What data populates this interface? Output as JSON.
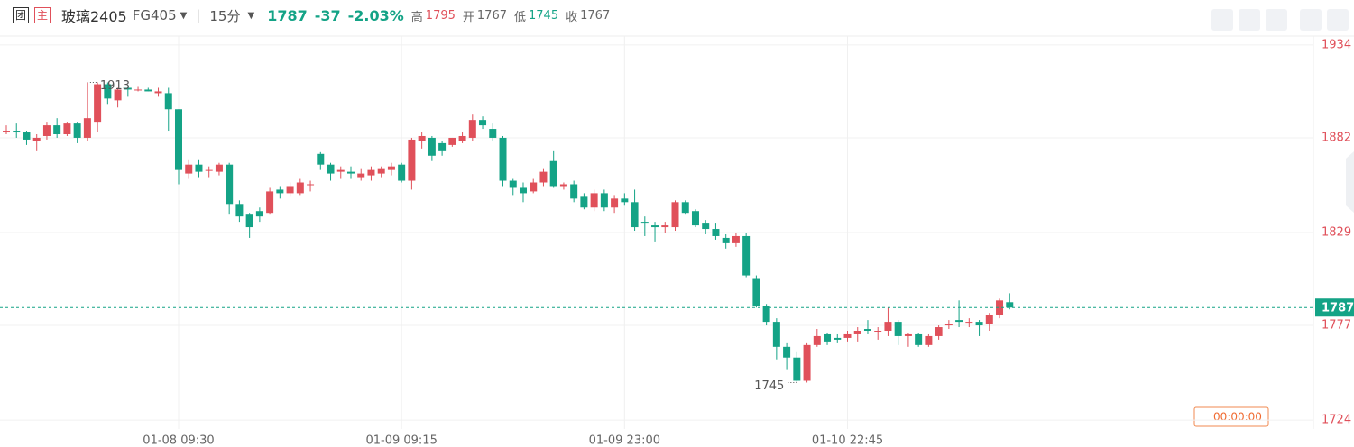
{
  "header": {
    "badges": [
      "团",
      "主"
    ],
    "name": "玻璃2405",
    "code": "FG405",
    "period": "15分",
    "price": 1787,
    "change": -37,
    "change_pct": "-2.03%",
    "stats": [
      {
        "label": "高",
        "value": 1795
      },
      {
        "label": "开",
        "value": 1767
      },
      {
        "label": "低",
        "value": 1745
      },
      {
        "label": "收",
        "value": 1767
      }
    ],
    "timer": "00:00:00"
  },
  "chart_data": {
    "type": "candlestick",
    "up_color": "#e0505a",
    "down_color": "#14a386",
    "ylim": [
      1719,
      1939
    ],
    "yticks": [
      1934,
      1882,
      1829,
      1777,
      1724
    ],
    "grid": true,
    "last_price": 1787,
    "max_label": 1913,
    "min_label": 1745,
    "categories": [
      null,
      null,
      null,
      null,
      null,
      null,
      null,
      null,
      null,
      null,
      null,
      null,
      null,
      null,
      null,
      null,
      null,
      "01-08 09:30",
      null,
      null,
      null,
      null,
      null,
      null,
      null,
      null,
      null,
      null,
      null,
      null,
      null,
      null,
      null,
      null,
      null,
      null,
      null,
      null,
      null,
      "01-09 09:15",
      null,
      null,
      null,
      null,
      null,
      null,
      null,
      null,
      null,
      null,
      null,
      null,
      null,
      null,
      null,
      null,
      null,
      null,
      null,
      null,
      null,
      "01-09 23:00",
      null,
      null,
      null,
      null,
      null,
      null,
      null,
      null,
      null,
      null,
      null,
      null,
      null,
      null,
      null,
      null,
      null,
      null,
      null,
      null,
      null,
      "01-10 22:45",
      null,
      null,
      null,
      null,
      null,
      null,
      null,
      null,
      null,
      null,
      null,
      null,
      null,
      null,
      null,
      null
    ],
    "open": [
      1886,
      1886,
      1885,
      1880,
      1883,
      1889,
      1884,
      1890,
      1882,
      1891,
      1912,
      1903,
      1910,
      1909,
      1909,
      1907,
      1907,
      1898,
      1862,
      1867,
      1864,
      1863,
      1867,
      1845,
      1839,
      1841,
      1840,
      1853,
      1851,
      1851,
      1856,
      1873,
      1867,
      1863,
      1863,
      1860,
      1861,
      1862,
      1864,
      1867,
      1858,
      1880,
      1882,
      1879,
      1878,
      1880,
      1882,
      1892,
      1887,
      1882,
      1858,
      1854,
      1852,
      1857,
      1869,
      1855,
      1856,
      1849,
      1843,
      1851,
      1843,
      1848,
      1846,
      1835,
      1833,
      1832,
      1832,
      1846,
      1841,
      1834,
      1831,
      1826,
      1823,
      1827,
      1803,
      1788,
      1779,
      1765,
      1759,
      1746,
      1766,
      1772,
      1770,
      1770,
      1772,
      1775,
      1774,
      1774,
      1779,
      1771,
      1772,
      1766,
      1771,
      1777,
      1780,
      1779,
      1779,
      1778,
      1783,
      1790
    ],
    "close": [
      1886,
      1885,
      1881,
      1882,
      1889,
      1884,
      1890,
      1882,
      1893,
      1912,
      1904,
      1909,
      1909,
      1909,
      1908,
      1908,
      1898,
      1864,
      1867,
      1863,
      1864,
      1867,
      1845,
      1838,
      1832,
      1838,
      1852,
      1851,
      1855,
      1857,
      1856,
      1867,
      1862,
      1864,
      1862,
      1862,
      1864,
      1865,
      1866,
      1858,
      1881,
      1883,
      1872,
      1875,
      1882,
      1883,
      1892,
      1889,
      1882,
      1858,
      1854,
      1851,
      1857,
      1863,
      1855,
      1856,
      1848,
      1843,
      1851,
      1843,
      1848,
      1846,
      1832,
      1834,
      1832,
      1833,
      1846,
      1840,
      1833,
      1831,
      1827,
      1823,
      1827,
      1805,
      1788,
      1779,
      1765,
      1759,
      1746,
      1766,
      1771,
      1768,
      1769,
      1772,
      1774,
      1774,
      1774,
      1779,
      1771,
      1772,
      1766,
      1771,
      1776,
      1778,
      1779,
      1779,
      1777,
      1783,
      1791,
      1787
    ],
    "high": [
      1889,
      1890,
      1886,
      1884,
      1891,
      1893,
      1891,
      1891,
      1913,
      1913,
      1913,
      1910,
      1911,
      1911,
      1910,
      1910,
      1910,
      1898,
      1870,
      1870,
      1866,
      1868,
      1868,
      1847,
      1840,
      1843,
      1854,
      1855,
      1857,
      1859,
      1858,
      1874,
      1868,
      1866,
      1866,
      1865,
      1866,
      1866,
      1868,
      1868,
      1882,
      1885,
      1883,
      1880,
      1882,
      1885,
      1895,
      1894,
      1890,
      1883,
      1859,
      1857,
      1859,
      1865,
      1875,
      1857,
      1858,
      1851,
      1853,
      1853,
      1850,
      1851,
      1853,
      1838,
      1835,
      1835,
      1847,
      1847,
      1842,
      1836,
      1834,
      1828,
      1829,
      1829,
      1805,
      1789,
      1781,
      1767,
      1762,
      1767,
      1775,
      1773,
      1772,
      1774,
      1776,
      1780,
      1776,
      1787,
      1780,
      1773,
      1773,
      1772,
      1777,
      1780,
      1791,
      1781,
      1780,
      1784,
      1792,
      1795
    ],
    "low": [
      1884,
      1882,
      1878,
      1875,
      1881,
      1882,
      1883,
      1879,
      1880,
      1885,
      1901,
      1899,
      1905,
      1908,
      1908,
      1905,
      1886,
      1856,
      1859,
      1860,
      1860,
      1861,
      1839,
      1835,
      1826,
      1835,
      1839,
      1848,
      1849,
      1850,
      1852,
      1864,
      1858,
      1859,
      1859,
      1858,
      1858,
      1860,
      1861,
      1857,
      1853,
      1876,
      1869,
      1872,
      1877,
      1879,
      1880,
      1887,
      1880,
      1855,
      1850,
      1846,
      1851,
      1855,
      1854,
      1853,
      1846,
      1842,
      1841,
      1841,
      1840,
      1844,
      1830,
      1827,
      1824,
      1829,
      1830,
      1839,
      1832,
      1828,
      1825,
      1820,
      1821,
      1804,
      1787,
      1777,
      1758,
      1752,
      1745,
      1745,
      1765,
      1766,
      1767,
      1768,
      1768,
      1772,
      1769,
      1771,
      1766,
      1765,
      1765,
      1765,
      1769,
      1775,
      1776,
      1776,
      1771,
      1774,
      1781,
      1786
    ]
  }
}
